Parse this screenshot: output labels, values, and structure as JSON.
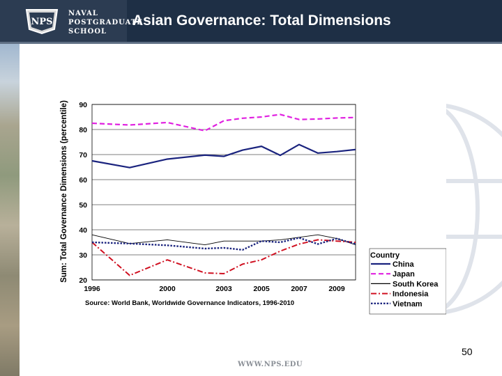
{
  "header": {
    "school_line1": "NAVAL",
    "school_line2": "POSTGRADUATE",
    "school_line3": "SCHOOL",
    "seal_text": "NPS",
    "title": "Asian Governance: Total Dimensions"
  },
  "footer": {
    "page_number": "50",
    "url": "WWW.NPS.EDU"
  },
  "colors": {
    "header_bg": "#1e2f45",
    "china": "#1a237e",
    "japan": "#e020e0",
    "south_korea": "#000000",
    "indonesia": "#d01020",
    "vietnam": "#1a237e"
  },
  "chart_data": {
    "type": "line",
    "ylabel": "Sum: Total Governance Dimensions (percentile)",
    "source": "Source: World Bank, Worldwide Governance Indicators, 1996-2010",
    "ylim": [
      20,
      90
    ],
    "yticks": [
      "90",
      "80",
      "70",
      "60",
      "50",
      "40",
      "30",
      "20"
    ],
    "x": [
      1996,
      1998,
      2000,
      2002,
      2003,
      2004,
      2005,
      2006,
      2007,
      2008,
      2009,
      2010
    ],
    "xtick_labels": [
      "1996",
      "2000",
      "2003",
      "2005",
      "2007",
      "2009"
    ],
    "legend_title": "Country",
    "series": [
      {
        "name": "China",
        "values": [
          67.5,
          64.8,
          68.2,
          69.8,
          69.3,
          71.8,
          73.3,
          69.7,
          74.0,
          70.6,
          71.2,
          72.0
        ]
      },
      {
        "name": "Japan",
        "values": [
          82.5,
          81.8,
          82.8,
          79.5,
          83.5,
          84.5,
          85.0,
          86.0,
          84.0,
          84.2,
          84.6,
          84.8
        ]
      },
      {
        "name": "South Korea",
        "values": [
          38.0,
          34.5,
          36.0,
          34.0,
          35.5,
          35.5,
          35.5,
          36.0,
          37.0,
          38.0,
          36.5,
          34.0
        ]
      },
      {
        "name": "Indonesia",
        "values": [
          35.0,
          21.8,
          28.0,
          22.8,
          22.5,
          26.3,
          28.0,
          31.5,
          34.3,
          36.0,
          35.5,
          35.0
        ]
      },
      {
        "name": "Vietnam",
        "values": [
          35.0,
          34.5,
          33.8,
          32.5,
          32.8,
          32.0,
          35.5,
          35.0,
          36.8,
          34.3,
          36.5,
          34.3
        ]
      }
    ]
  }
}
